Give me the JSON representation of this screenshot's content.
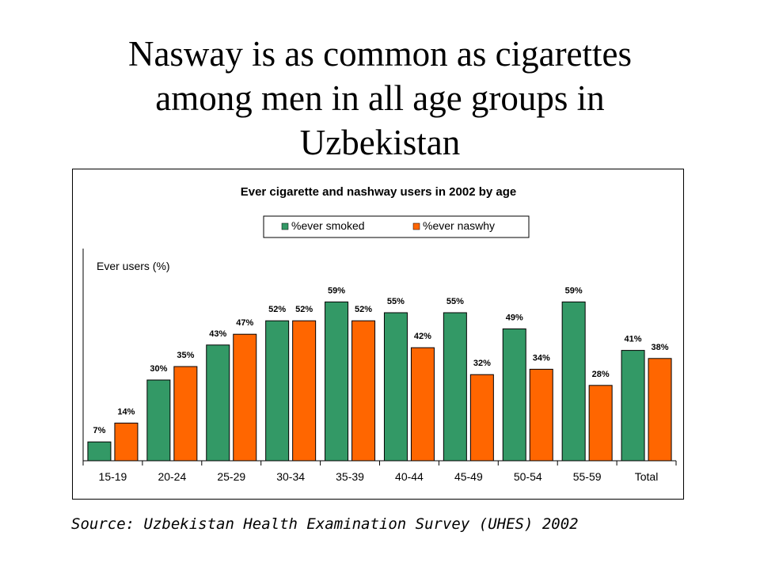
{
  "slide": {
    "title_lines": [
      "Nasway is as common as cigarettes",
      "among men in all age groups in",
      "Uzbekistan"
    ],
    "source": "Source: Uzbekistan Health Examination Survey (UHES) 2002"
  },
  "chart_data": {
    "type": "bar",
    "title": "Ever cigarette and nashway users in 2002 by age",
    "ylabel": "Ever users (%)",
    "xlabel": "",
    "categories": [
      "15-19",
      "20-24",
      "25-29",
      "30-34",
      "35-39",
      "40-44",
      "45-49",
      "50-54",
      "55-59",
      "Total"
    ],
    "series": [
      {
        "name": "%ever smoked",
        "color": "#339966",
        "values": [
          7,
          30,
          43,
          52,
          59,
          55,
          55,
          49,
          59,
          41
        ],
        "labels": [
          "7%",
          "30%",
          "43%",
          "52%",
          "59%",
          "55%",
          "55%",
          "49%",
          "59%",
          "41%"
        ]
      },
      {
        "name": "%ever naswhy",
        "color": "#ff6600",
        "values": [
          14,
          35,
          47,
          52,
          52,
          42,
          32,
          34,
          28,
          38
        ],
        "labels": [
          "14%",
          "35%",
          "47%",
          "52%",
          "52%",
          "42%",
          "32%",
          "34%",
          "28%",
          "38%"
        ]
      }
    ],
    "ylim": [
      0,
      70
    ],
    "grid": false,
    "legend_position": "top"
  }
}
